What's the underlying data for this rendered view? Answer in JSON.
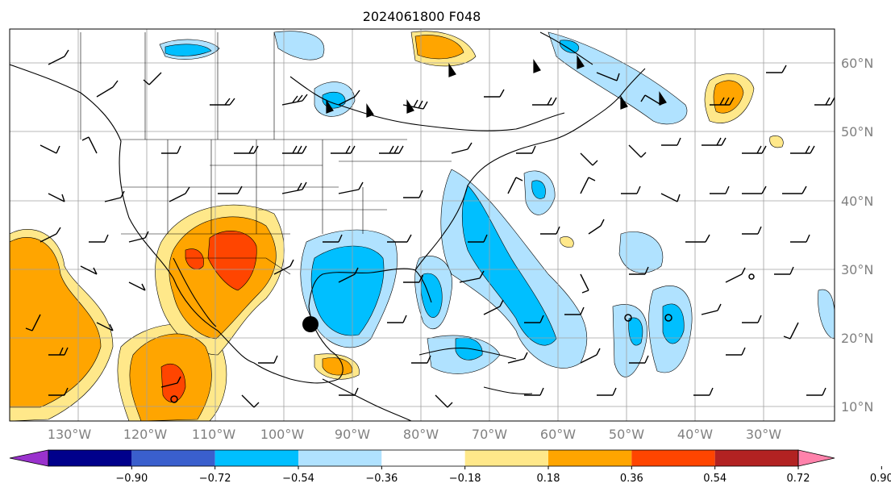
{
  "title": "2024061800 F048",
  "map": {
    "lon_range": [
      -140,
      -25
    ],
    "lat_range": [
      8,
      65
    ],
    "lon_labels": [
      "130°W",
      "120°W",
      "110°W",
      "100°W",
      "90°W",
      "80°W",
      "70°W",
      "60°W",
      "50°W",
      "40°W",
      "30°W"
    ],
    "lat_labels": [
      "60°N",
      "50°N",
      "40°N",
      "30°N",
      "20°N",
      "10°N"
    ],
    "storm_center": {
      "lon": -95.5,
      "lat": 22.0
    }
  },
  "colorbar": {
    "levels": [
      "−0.90",
      "−0.72",
      "−0.54",
      "−0.36",
      "−0.18",
      "0.18",
      "0.36",
      "0.54",
      "0.72",
      "0.90"
    ],
    "colors": [
      "#9a32cd",
      "#00008b",
      "#3a5fcd",
      "#00bfff",
      "#b0e2ff",
      "#ffffff",
      "#ffe88a",
      "#ffa500",
      "#ff4500",
      "#b22222",
      "#ff82ab"
    ]
  },
  "field_colors": {
    "light_blue": "#b0e2ff",
    "blue": "#00bfff",
    "yellow": "#ffe88a",
    "orange": "#ffa500",
    "red": "#ff4500"
  }
}
